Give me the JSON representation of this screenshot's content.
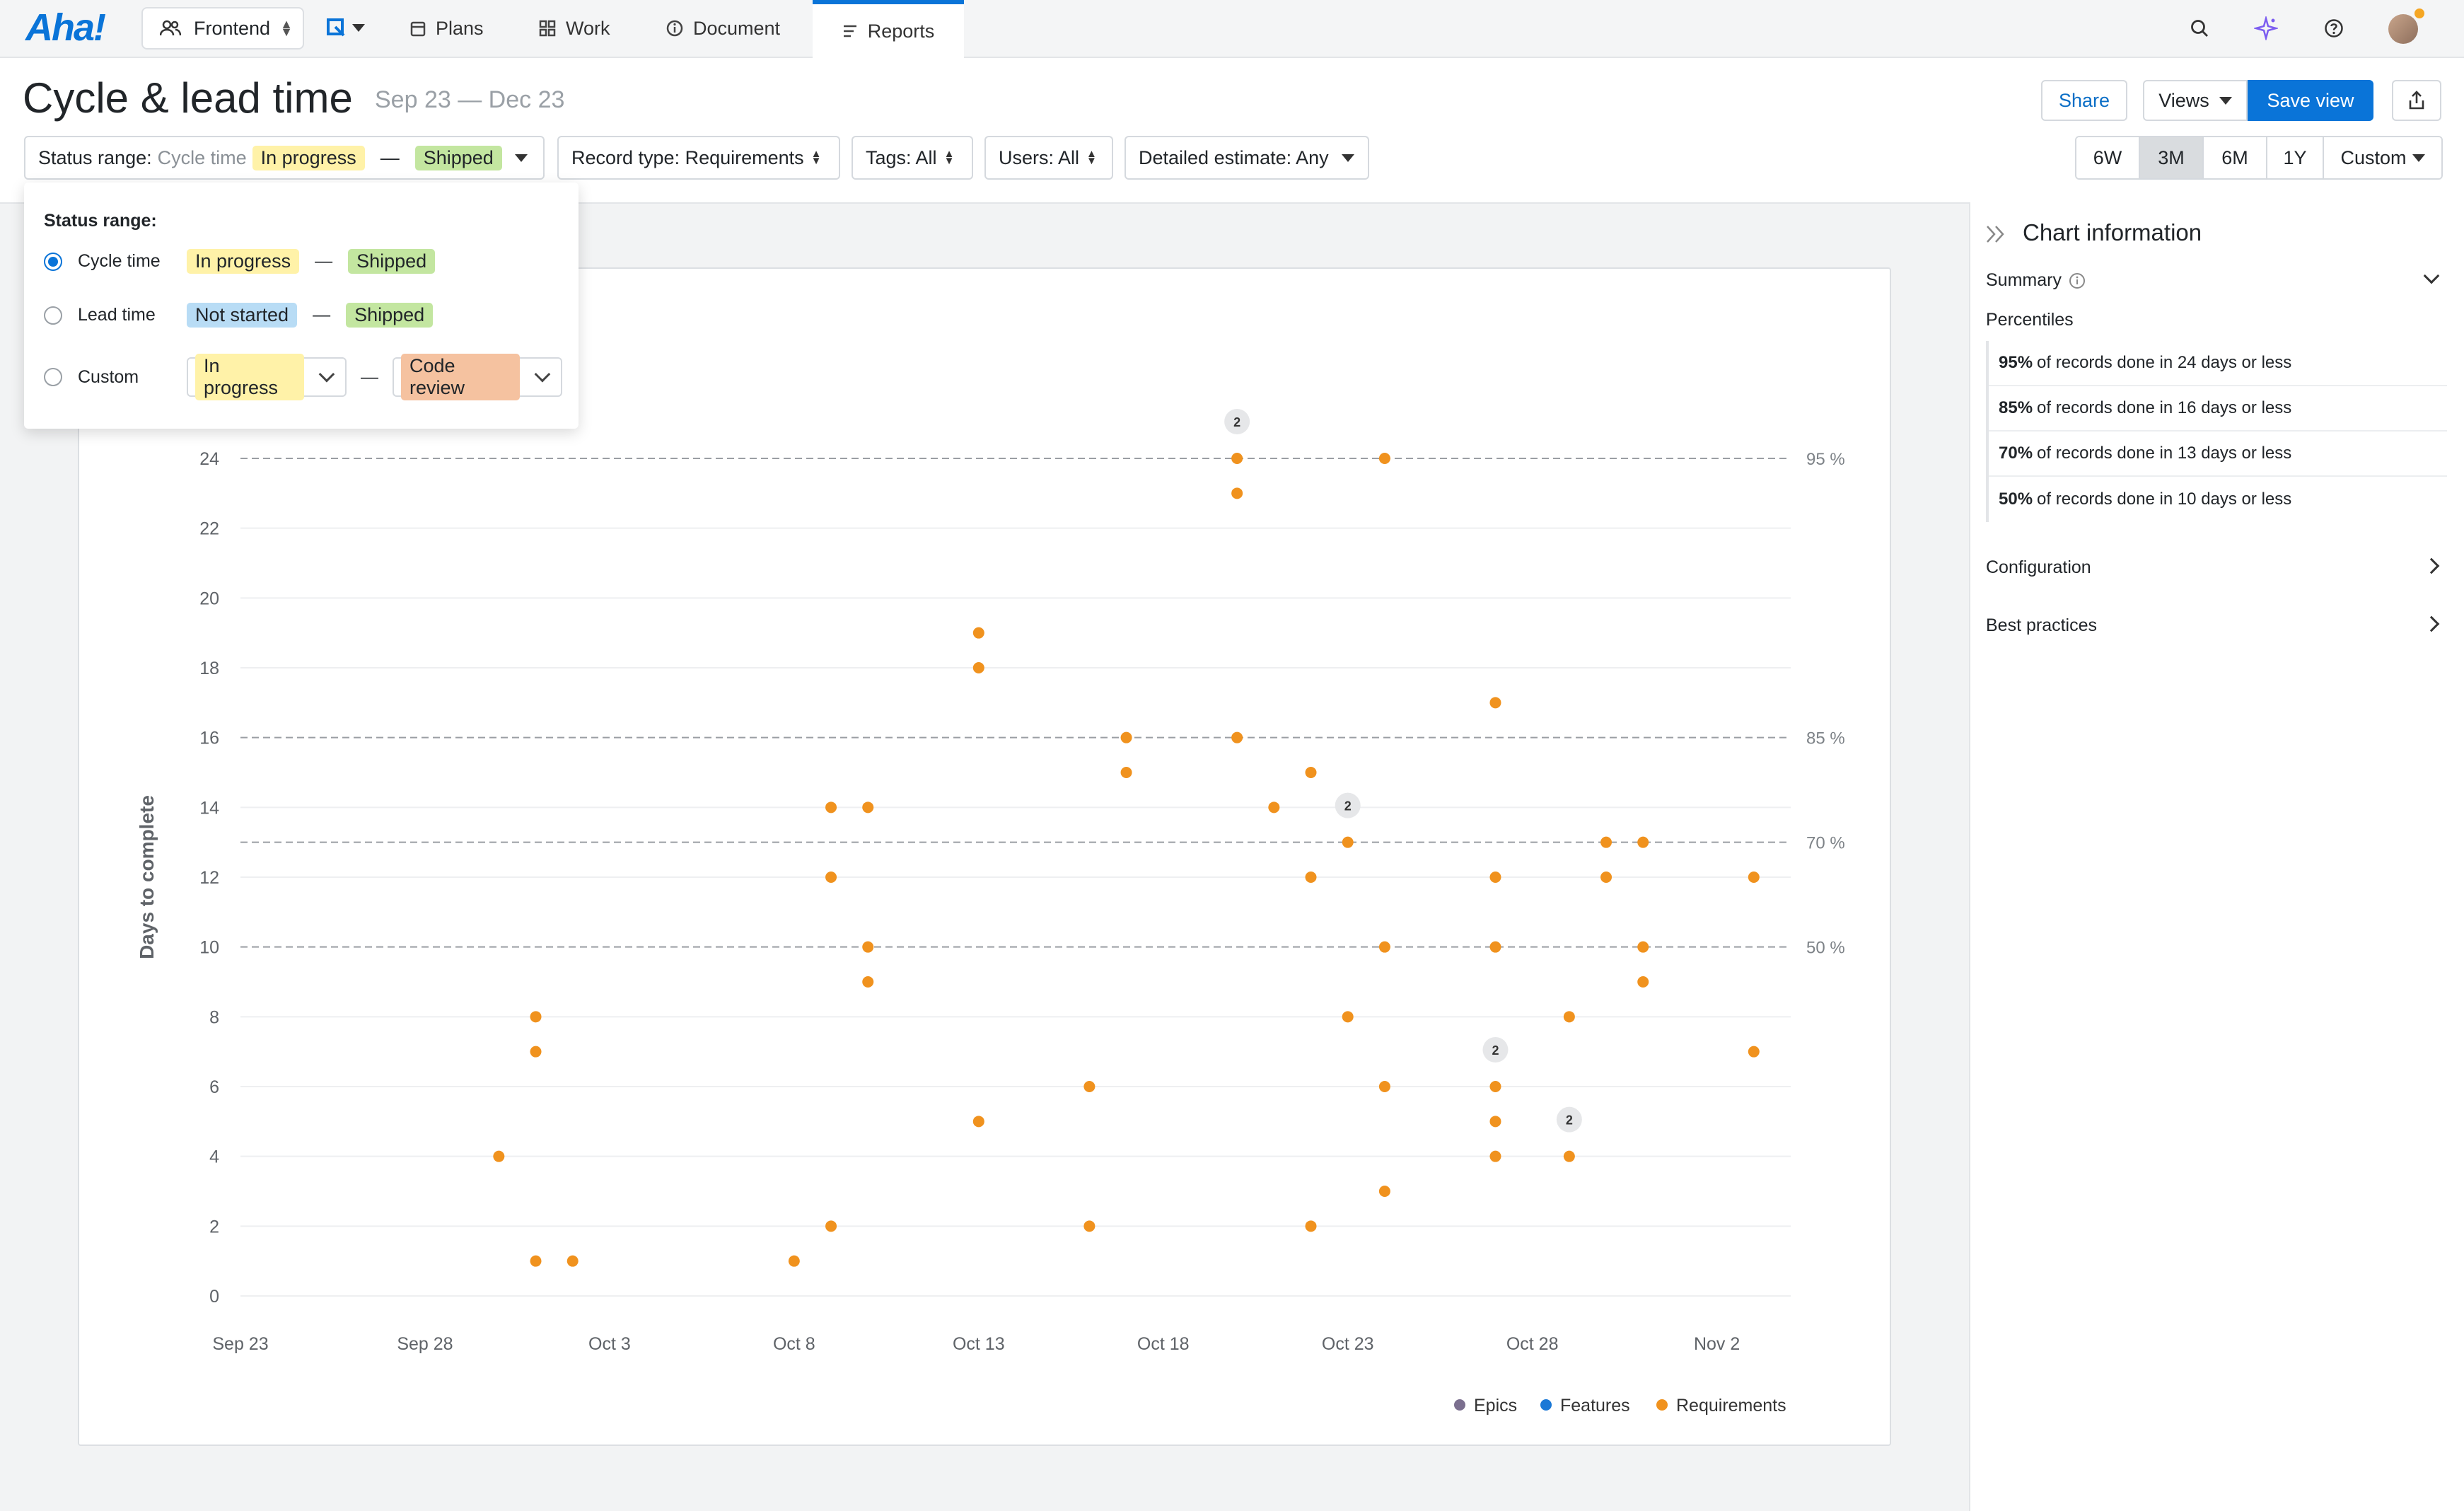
{
  "nav": {
    "logo": "Aha!",
    "workspace": "Frontend",
    "tabs": [
      {
        "label": "Plans",
        "icon": "calendar-icon"
      },
      {
        "label": "Work",
        "icon": "grid-icon"
      },
      {
        "label": "Document",
        "icon": "info-icon"
      },
      {
        "label": "Reports",
        "icon": "report-icon",
        "active": true
      }
    ],
    "accent_color": "#0a74d8"
  },
  "header": {
    "title": "Cycle & lead time",
    "date_range": "Sep 23 — Dec 23",
    "share_label": "Share",
    "views_label": "Views",
    "save_view_label": "Save view"
  },
  "filters": {
    "status_range_label": "Status range:",
    "status_range_type": "Cycle time",
    "status_from": "In progress",
    "status_to": "Shipped",
    "record_type": "Record type: Requirements",
    "tags": "Tags: All",
    "users": "Users: All",
    "detailed_estimate": "Detailed estimate: Any"
  },
  "timeframes": [
    {
      "label": "6W",
      "selected": false
    },
    {
      "label": "3M",
      "selected": true
    },
    {
      "label": "6M",
      "selected": false
    },
    {
      "label": "1Y",
      "selected": false
    },
    {
      "label": "Custom",
      "selected": false
    }
  ],
  "dropdown": {
    "title": "Status range:",
    "options": [
      {
        "label": "Cycle time",
        "from": "In progress",
        "to": "Shipped",
        "selected": true
      },
      {
        "label": "Lead time",
        "from": "Not started",
        "to": "Shipped",
        "selected": false
      },
      {
        "label": "Custom",
        "from": "In progress",
        "to": "Code review",
        "selected": false
      }
    ],
    "dash": "—"
  },
  "side_panel": {
    "title": "Chart information",
    "summary_label": "Summary",
    "percentiles_label": "Percentiles",
    "percentiles": [
      {
        "pct": "95%",
        "text": "of records done in 24 days or less"
      },
      {
        "pct": "85%",
        "text": "of records done in 16 days or less"
      },
      {
        "pct": "70%",
        "text": "of records done in 13 days or less"
      },
      {
        "pct": "50%",
        "text": "of records done in 10 days or less"
      }
    ],
    "configuration_label": "Configuration",
    "best_practices_label": "Best practices"
  },
  "chart_data": {
    "type": "scatter",
    "ylabel": "Days to complete",
    "xlabel": "",
    "ylim": [
      0,
      24
    ],
    "y_ticks": [
      0,
      2,
      4,
      6,
      8,
      10,
      12,
      14,
      16,
      18,
      20,
      22,
      24
    ],
    "x_ticks": [
      "Sep 23",
      "Sep 28",
      "Oct 3",
      "Oct 8",
      "Oct 13",
      "Oct 18",
      "Oct 23",
      "Oct 28",
      "Nov 2"
    ],
    "x_start": "2023-09-23",
    "percentile_lines": [
      {
        "label": "95 %",
        "value": 24
      },
      {
        "label": "85 %",
        "value": 16
      },
      {
        "label": "70 %",
        "value": 13
      },
      {
        "label": "50 %",
        "value": 10
      }
    ],
    "legend": [
      {
        "name": "Epics",
        "color": "#7b6f8f"
      },
      {
        "name": "Features",
        "color": "#1a78d6"
      },
      {
        "name": "Requirements",
        "color": "#f0921e"
      }
    ],
    "legend_position": "bottom-right",
    "grid": true,
    "series": [
      {
        "name": "Requirements",
        "color": "#f0921e",
        "points": [
          {
            "x": "2023-09-30",
            "y": 4
          },
          {
            "x": "2023-10-01",
            "y": 8
          },
          {
            "x": "2023-10-01",
            "y": 7
          },
          {
            "x": "2023-10-01",
            "y": 1
          },
          {
            "x": "2023-10-02",
            "y": 1
          },
          {
            "x": "2023-10-08",
            "y": 1
          },
          {
            "x": "2023-10-09",
            "y": 14
          },
          {
            "x": "2023-10-09",
            "y": 12
          },
          {
            "x": "2023-10-09",
            "y": 2
          },
          {
            "x": "2023-10-10",
            "y": 14
          },
          {
            "x": "2023-10-10",
            "y": 10
          },
          {
            "x": "2023-10-10",
            "y": 9
          },
          {
            "x": "2023-10-13",
            "y": 19
          },
          {
            "x": "2023-10-13",
            "y": 18
          },
          {
            "x": "2023-10-13",
            "y": 5
          },
          {
            "x": "2023-10-16",
            "y": 6
          },
          {
            "x": "2023-10-16",
            "y": 2
          },
          {
            "x": "2023-10-17",
            "y": 16
          },
          {
            "x": "2023-10-17",
            "y": 15
          },
          {
            "x": "2023-10-20",
            "y": 24,
            "count": 2
          },
          {
            "x": "2023-10-20",
            "y": 23
          },
          {
            "x": "2023-10-20",
            "y": 16
          },
          {
            "x": "2023-10-21",
            "y": 14
          },
          {
            "x": "2023-10-22",
            "y": 15
          },
          {
            "x": "2023-10-22",
            "y": 12
          },
          {
            "x": "2023-10-22",
            "y": 2
          },
          {
            "x": "2023-10-23",
            "y": 14
          },
          {
            "x": "2023-10-23",
            "y": 13,
            "count": 2
          },
          {
            "x": "2023-10-23",
            "y": 8
          },
          {
            "x": "2023-10-24",
            "y": 24
          },
          {
            "x": "2023-10-24",
            "y": 10
          },
          {
            "x": "2023-10-24",
            "y": 6
          },
          {
            "x": "2023-10-24",
            "y": 3
          },
          {
            "x": "2023-10-27",
            "y": 17
          },
          {
            "x": "2023-10-27",
            "y": 12
          },
          {
            "x": "2023-10-27",
            "y": 10
          },
          {
            "x": "2023-10-27",
            "y": 6,
            "count": 2
          },
          {
            "x": "2023-10-27",
            "y": 5
          },
          {
            "x": "2023-10-27",
            "y": 4
          },
          {
            "x": "2023-10-29",
            "y": 8
          },
          {
            "x": "2023-10-29",
            "y": 5
          },
          {
            "x": "2023-10-29",
            "y": 4,
            "count": 2
          },
          {
            "x": "2023-10-30",
            "y": 13
          },
          {
            "x": "2023-10-30",
            "y": 12
          },
          {
            "x": "2023-10-31",
            "y": 13
          },
          {
            "x": "2023-10-31",
            "y": 10
          },
          {
            "x": "2023-10-31",
            "y": 9
          },
          {
            "x": "2023-11-03",
            "y": 12
          },
          {
            "x": "2023-11-03",
            "y": 7
          }
        ]
      }
    ]
  }
}
